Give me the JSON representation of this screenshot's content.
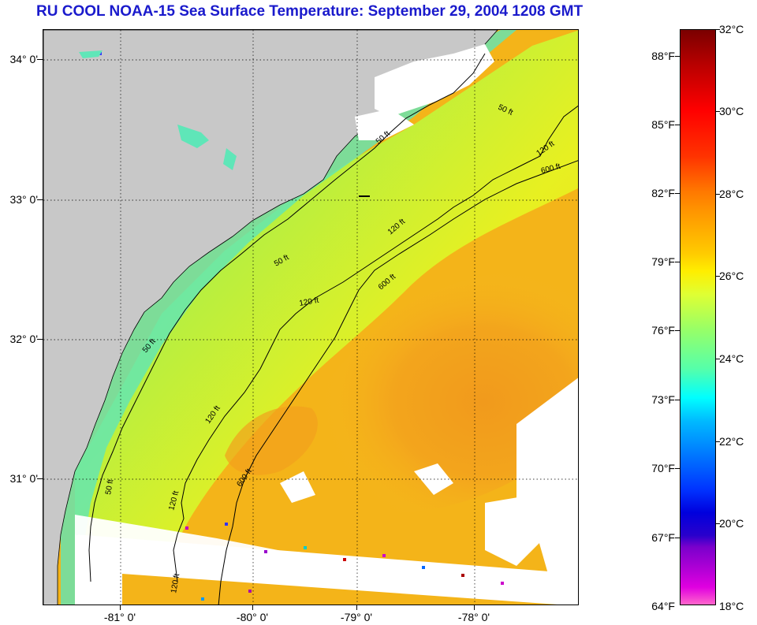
{
  "title": "RU COOL  NOAA-15  Sea Surface Temperature:  September 29, 2004 1208 GMT",
  "axes": {
    "lat_labels": [
      "34° 0'",
      "33° 0'",
      "32° 0'",
      "31° 0'"
    ],
    "lon_labels": [
      "-81° 0'",
      "-80° 0'",
      "-79° 0'",
      "-78° 0'"
    ]
  },
  "contours": {
    "c50_top": "50 ft",
    "c120_top": "120 ft",
    "c600_top": "600 ft",
    "c120_mid": "120 ft",
    "c50_mid1": "50 ft",
    "c50_mid2": "50 ft",
    "c120_mid2": "120 ft",
    "c600_mid": "600 ft",
    "c120_low": "120 ft",
    "c600_low": "600 ft",
    "c50_low": "50 ft",
    "c120_bot": "120 ft",
    "c50_bot": "50 ft",
    "c120_bot2": "120 ft"
  },
  "colorbar": {
    "fahrenheit": [
      "88°F",
      "85°F",
      "82°F",
      "79°F",
      "76°F",
      "73°F",
      "70°F",
      "67°F",
      "64°F"
    ],
    "celsius": [
      "32°C",
      "30°C",
      "28°C",
      "26°C",
      "24°C",
      "22°C",
      "20°C",
      "18°C"
    ]
  },
  "colors": {
    "land": "#c8c8c8",
    "title": "#1a1acc",
    "cloud": "#ffffff"
  }
}
